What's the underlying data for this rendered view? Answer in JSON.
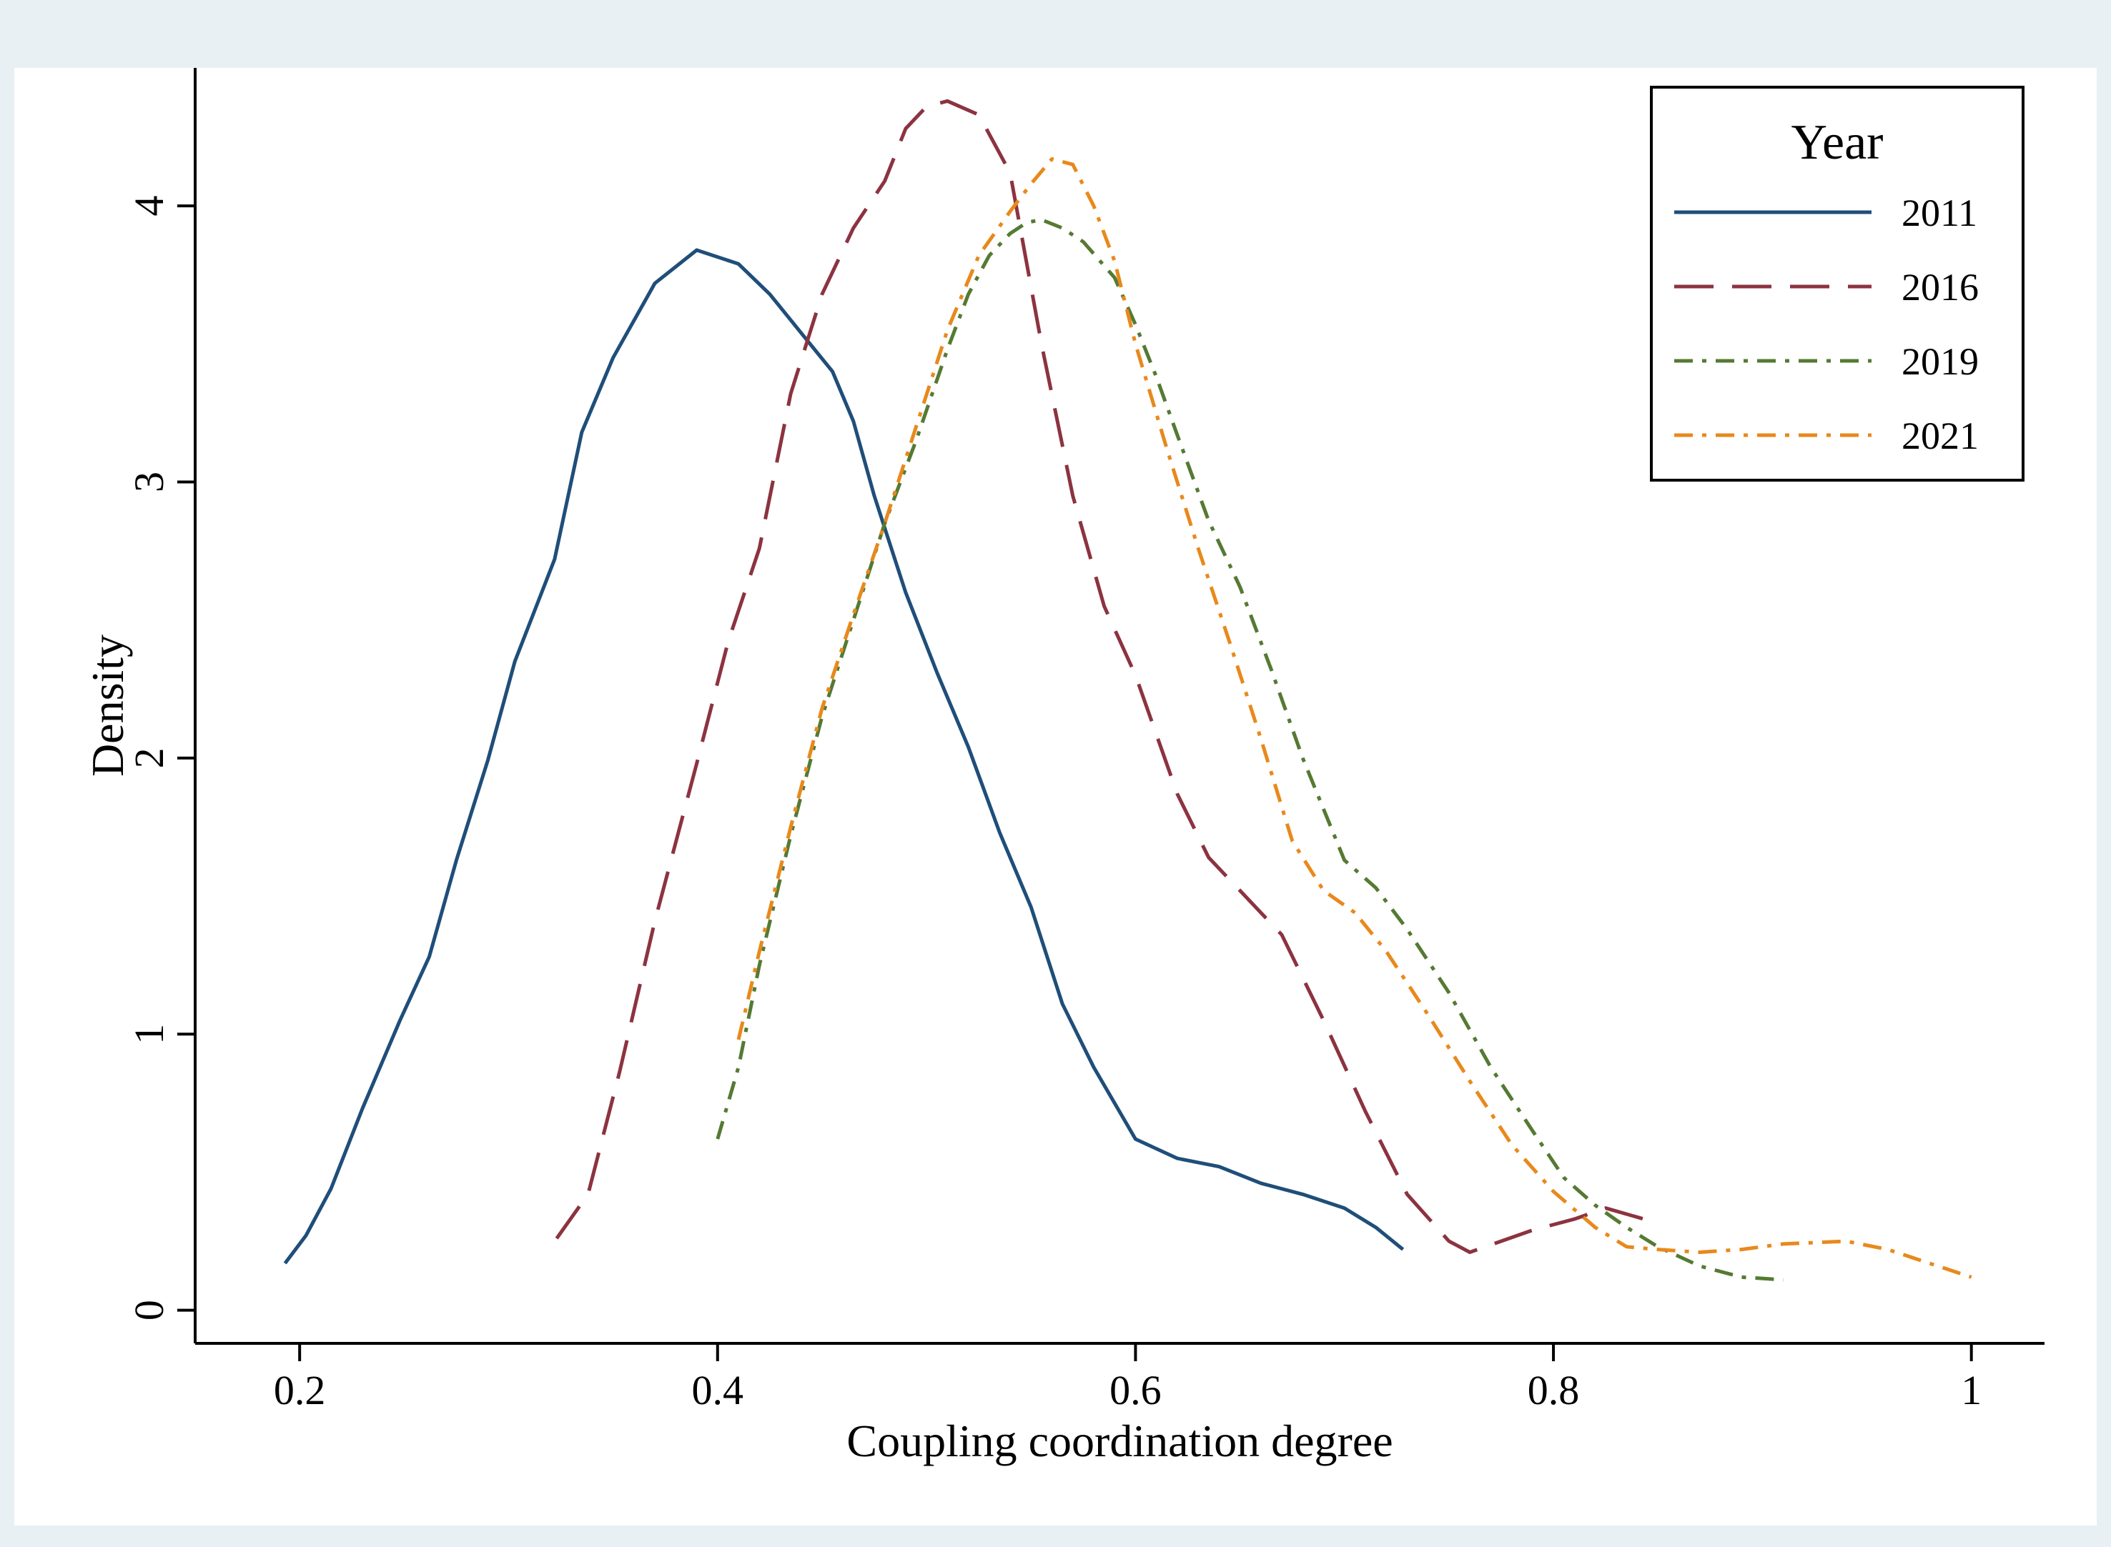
{
  "chart_data": {
    "type": "line",
    "title": "",
    "xlabel": "Coupling coordination degree",
    "ylabel": "Density",
    "xlim": [
      0.15,
      1.035
    ],
    "ylim": [
      -0.12,
      4.5
    ],
    "xticks": [
      0.2,
      0.4,
      0.6,
      0.8,
      1
    ],
    "xtick_labels": [
      "0.2",
      "0.4",
      "0.6",
      "0.8",
      "1"
    ],
    "yticks": [
      0,
      1,
      2,
      3,
      4
    ],
    "ytick_labels": [
      "0",
      "1",
      "2",
      "3",
      "4"
    ],
    "grid": false,
    "legend": {
      "title": "Year",
      "position": "top-right"
    },
    "series": [
      {
        "name": "2011",
        "color": "#1f4e79",
        "dash": "solid",
        "x": [
          0.193,
          0.203,
          0.215,
          0.23,
          0.248,
          0.262,
          0.275,
          0.29,
          0.303,
          0.322,
          0.335,
          0.35,
          0.37,
          0.39,
          0.41,
          0.425,
          0.44,
          0.455,
          0.465,
          0.475,
          0.49,
          0.505,
          0.52,
          0.535,
          0.55,
          0.565,
          0.58,
          0.6,
          0.62,
          0.64,
          0.66,
          0.68,
          0.7,
          0.715,
          0.728
        ],
        "y": [
          0.17,
          0.27,
          0.44,
          0.73,
          1.05,
          1.28,
          1.63,
          1.99,
          2.35,
          2.72,
          3.18,
          3.45,
          3.72,
          3.84,
          3.79,
          3.68,
          3.54,
          3.4,
          3.22,
          2.95,
          2.6,
          2.31,
          2.04,
          1.73,
          1.46,
          1.11,
          0.88,
          0.62,
          0.55,
          0.52,
          0.46,
          0.42,
          0.37,
          0.3,
          0.22
        ]
      },
      {
        "name": "2016",
        "color": "#8c3340",
        "dash": "long-dash",
        "x": [
          0.323,
          0.338,
          0.353,
          0.37,
          0.39,
          0.405,
          0.42,
          0.435,
          0.45,
          0.465,
          0.48,
          0.49,
          0.5,
          0.51,
          0.525,
          0.54,
          0.555,
          0.57,
          0.585,
          0.6,
          0.62,
          0.635,
          0.65,
          0.67,
          0.69,
          0.71,
          0.73,
          0.75,
          0.76,
          0.775,
          0.79,
          0.81,
          0.825,
          0.848
        ],
        "y": [
          0.26,
          0.42,
          0.86,
          1.41,
          1.98,
          2.42,
          2.76,
          3.32,
          3.68,
          3.92,
          4.09,
          4.28,
          4.36,
          4.38,
          4.33,
          4.12,
          3.5,
          2.95,
          2.55,
          2.3,
          1.87,
          1.64,
          1.52,
          1.36,
          1.05,
          0.72,
          0.42,
          0.25,
          0.21,
          0.25,
          0.29,
          0.33,
          0.37,
          0.32
        ]
      },
      {
        "name": "2019",
        "color": "#557a33",
        "dash": "dash-dot",
        "x": [
          0.4,
          0.41,
          0.42,
          0.435,
          0.45,
          0.465,
          0.48,
          0.495,
          0.51,
          0.52,
          0.53,
          0.54,
          0.548,
          0.555,
          0.565,
          0.575,
          0.59,
          0.6,
          0.61,
          0.62,
          0.635,
          0.65,
          0.665,
          0.68,
          0.7,
          0.715,
          0.73,
          0.75,
          0.77,
          0.79,
          0.805,
          0.82,
          0.835,
          0.85,
          0.87,
          0.89,
          0.91
        ],
        "y": [
          0.62,
          0.88,
          1.25,
          1.72,
          2.15,
          2.5,
          2.85,
          3.15,
          3.48,
          3.68,
          3.82,
          3.9,
          3.94,
          3.95,
          3.92,
          3.87,
          3.74,
          3.57,
          3.38,
          3.17,
          2.86,
          2.62,
          2.32,
          2.0,
          1.63,
          1.53,
          1.38,
          1.15,
          0.88,
          0.65,
          0.48,
          0.38,
          0.3,
          0.23,
          0.16,
          0.12,
          0.11
        ]
      },
      {
        "name": "2021",
        "color": "#e8891c",
        "dash": "dash-dot",
        "x": [
          0.41,
          0.42,
          0.435,
          0.45,
          0.465,
          0.48,
          0.495,
          0.51,
          0.525,
          0.54,
          0.55,
          0.56,
          0.57,
          0.58,
          0.59,
          0.6,
          0.615,
          0.63,
          0.645,
          0.66,
          0.675,
          0.69,
          0.705,
          0.72,
          0.74,
          0.76,
          0.78,
          0.8,
          0.82,
          0.835,
          0.85,
          0.87,
          0.89,
          0.91,
          0.94,
          0.96,
          0.98,
          1.0
        ],
        "y": [
          0.98,
          1.3,
          1.75,
          2.18,
          2.52,
          2.85,
          3.2,
          3.55,
          3.82,
          3.98,
          4.08,
          4.17,
          4.15,
          4.0,
          3.8,
          3.5,
          3.12,
          2.76,
          2.42,
          2.07,
          1.7,
          1.52,
          1.44,
          1.3,
          1.07,
          0.83,
          0.6,
          0.43,
          0.3,
          0.23,
          0.22,
          0.21,
          0.22,
          0.24,
          0.25,
          0.22,
          0.17,
          0.12
        ]
      }
    ]
  }
}
